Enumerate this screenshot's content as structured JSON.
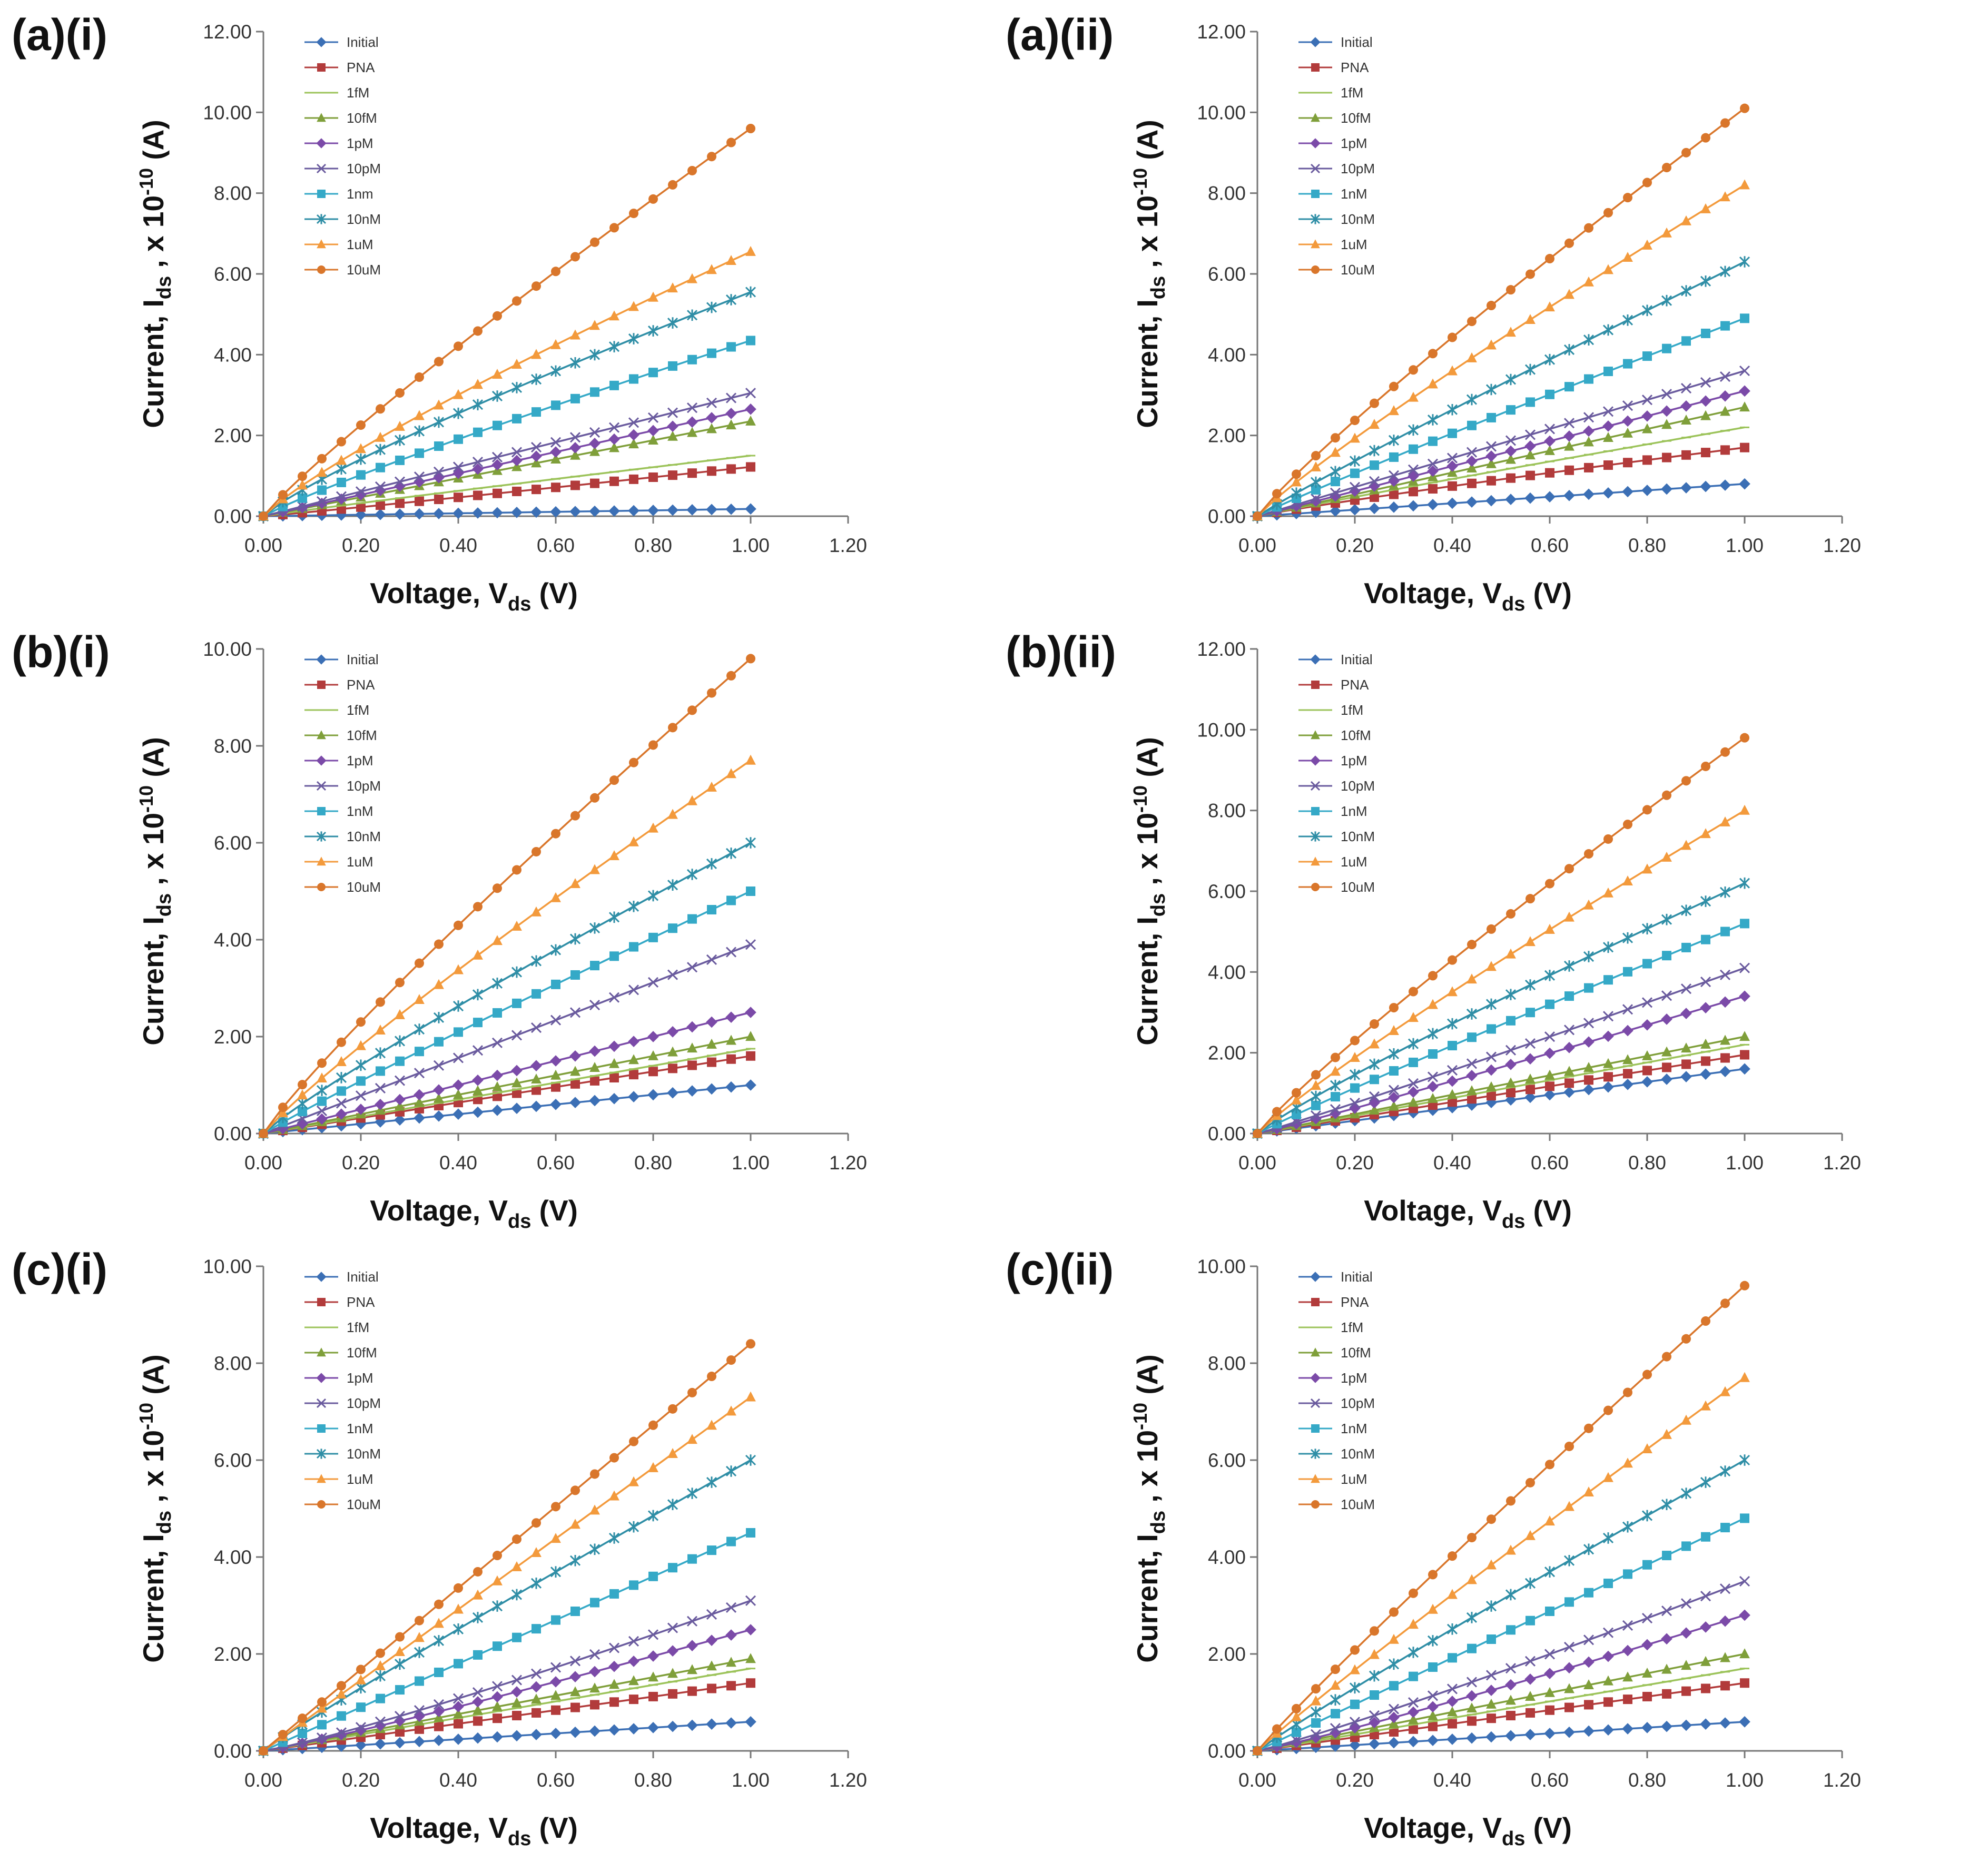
{
  "figure": {
    "series_order": [
      "Initial",
      "PNA",
      "1fM",
      "10fM",
      "1pM",
      "10pM",
      "1nM",
      "10nM",
      "1uM",
      "10uM"
    ],
    "series_colors": {
      "Initial": "#3b6fb5",
      "PNA": "#b23b3b",
      "1fM": "#9cc35a",
      "10fM": "#7f9f3a",
      "1pM": "#7b4aa8",
      "10pM": "#6a5b9e",
      "1nM": "#35a9c7",
      "10nM": "#2f8ea6",
      "1uM": "#f39a3c",
      "10uM": "#d9762b"
    },
    "series_markers": {
      "Initial": "diamond-icon",
      "PNA": "square-icon",
      "1fM": "dash-icon",
      "10fM": "triangle-icon",
      "1pM": "diamond-icon",
      "10pM": "x-icon",
      "1nM": "square-icon",
      "10nM": "star-icon",
      "1uM": "triangle-icon",
      "10uM": "circle-icon"
    }
  },
  "chart_data": [
    {
      "type": "line",
      "panel": "(a)(i)",
      "xlabel": "Voltage, Vds (V)",
      "xlabel_main": "Voltage, V",
      "xlabel_sub": "ds",
      "xlabel_tail": " (V)",
      "ylabel": "Current, Ids , x 10-10 (A)",
      "ylabel_main": "Current, I",
      "ylabel_sub": "ds",
      "ylabel_mid": " , x 10",
      "ylabel_sup": "-10",
      "ylabel_tail": " (A)",
      "xlim": [
        0,
        1.2
      ],
      "ylim": [
        0,
        12
      ],
      "xticks": [
        "0.00",
        "0.20",
        "0.40",
        "0.60",
        "0.80",
        "1.00",
        "1.20"
      ],
      "yticks": [
        "0.00",
        "2.00",
        "4.00",
        "6.00",
        "8.00",
        "10.00",
        "12.00"
      ],
      "legend": [
        "Initial",
        "PNA",
        "1fM",
        "10fM",
        "1pM",
        "10pM",
        "1nm",
        "10nM",
        "1uM",
        "10uM"
      ],
      "x_start": 0,
      "x_end": 1.0,
      "points": 26,
      "series": [
        {
          "name": "Initial",
          "end": 0.18,
          "curve": 1.0
        },
        {
          "name": "PNA",
          "end": 1.22,
          "curve": 1.05
        },
        {
          "name": "1fM",
          "end": 1.5,
          "curve": 0.95
        },
        {
          "name": "10fM",
          "end": 2.35,
          "curve": 1.0
        },
        {
          "name": "1pM",
          "end": 2.65,
          "curve": 1.0
        },
        {
          "name": "10pM",
          "end": 3.05,
          "curve": 1.0
        },
        {
          "name": "1nM",
          "end": 4.35,
          "curve": 0.9
        },
        {
          "name": "10nM",
          "end": 5.55,
          "curve": 0.85
        },
        {
          "name": "1uM",
          "end": 6.55,
          "curve": 0.85
        },
        {
          "name": "10uM",
          "end": 9.6,
          "curve": 0.9
        }
      ]
    },
    {
      "type": "line",
      "panel": "(a)(ii)",
      "xlabel": "Voltage, Vds (V)",
      "xlabel_main": "Voltage, V",
      "xlabel_sub": "ds",
      "xlabel_tail": " (V)",
      "ylabel": "Current, Ids , x 10-10 (A)",
      "ylabel_main": "Current, I",
      "ylabel_sub": "ds",
      "ylabel_mid": " , x 10",
      "ylabel_sup": "-10",
      "ylabel_tail": " (A)",
      "xlim": [
        0,
        1.2
      ],
      "ylim": [
        0,
        12
      ],
      "xticks": [
        "0.00",
        "0.20",
        "0.40",
        "0.60",
        "0.80",
        "1.00",
        "1.20"
      ],
      "yticks": [
        "0.00",
        "2.00",
        "4.00",
        "6.00",
        "8.00",
        "10.00",
        "12.00"
      ],
      "legend": [
        "Initial",
        "PNA",
        "1fM",
        "10fM",
        "1pM",
        "10pM",
        "1nM",
        "10nM",
        "1uM",
        "10uM"
      ],
      "x_start": 0,
      "x_end": 1.0,
      "points": 26,
      "series": [
        {
          "name": "Initial",
          "end": 0.8,
          "curve": 1.0
        },
        {
          "name": "PNA",
          "end": 1.7,
          "curve": 0.9
        },
        {
          "name": "1fM",
          "end": 2.2,
          "curve": 0.95
        },
        {
          "name": "10fM",
          "end": 2.7,
          "curve": 1.0
        },
        {
          "name": "1pM",
          "end": 3.1,
          "curve": 1.0
        },
        {
          "name": "10pM",
          "end": 3.6,
          "curve": 1.0
        },
        {
          "name": "1nM",
          "end": 4.9,
          "curve": 0.95
        },
        {
          "name": "10nM",
          "end": 6.3,
          "curve": 0.95
        },
        {
          "name": "1uM",
          "end": 8.2,
          "curve": 0.9
        },
        {
          "name": "10uM",
          "end": 10.1,
          "curve": 0.9
        }
      ]
    },
    {
      "type": "line",
      "panel": "(b)(i)",
      "xlabel": "Voltage, Vds (V)",
      "xlabel_main": "Voltage, V",
      "xlabel_sub": "ds",
      "xlabel_tail": " (V)",
      "ylabel": "Current, Ids , x 10-10 (A)",
      "ylabel_main": "Current, I",
      "ylabel_sub": "ds",
      "ylabel_mid": " , x 10",
      "ylabel_sup": "-10",
      "ylabel_tail": " (A)",
      "xlim": [
        0,
        1.2
      ],
      "ylim": [
        0,
        10
      ],
      "xticks": [
        "0.00",
        "0.20",
        "0.40",
        "0.60",
        "0.80",
        "1.00",
        "1.20"
      ],
      "yticks": [
        "0.00",
        "2.00",
        "4.00",
        "6.00",
        "8.00",
        "10.00"
      ],
      "legend": [
        "Initial",
        "PNA",
        "1fM",
        "10fM",
        "1pM",
        "10pM",
        "1nM",
        "10nM",
        "1uM",
        "10uM"
      ],
      "x_start": 0,
      "x_end": 1.0,
      "points": 26,
      "series": [
        {
          "name": "Initial",
          "end": 1.0,
          "curve": 1.0
        },
        {
          "name": "PNA",
          "end": 1.6,
          "curve": 1.0
        },
        {
          "name": "1fM",
          "end": 1.75,
          "curve": 1.0
        },
        {
          "name": "10fM",
          "end": 2.0,
          "curve": 1.0
        },
        {
          "name": "1pM",
          "end": 2.5,
          "curve": 1.0
        },
        {
          "name": "10pM",
          "end": 3.9,
          "curve": 1.0
        },
        {
          "name": "1nM",
          "end": 5.0,
          "curve": 0.95
        },
        {
          "name": "10nM",
          "end": 6.0,
          "curve": 0.9
        },
        {
          "name": "1uM",
          "end": 7.7,
          "curve": 0.9
        },
        {
          "name": "10uM",
          "end": 9.8,
          "curve": 0.9
        }
      ]
    },
    {
      "type": "line",
      "panel": "(b)(ii)",
      "xlabel": "Voltage, Vds (V)",
      "xlabel_main": "Voltage, V",
      "xlabel_sub": "ds",
      "xlabel_tail": " (V)",
      "ylabel": "Current, Ids , x 10-10 (A)",
      "ylabel_main": "Current, I",
      "ylabel_sub": "ds",
      "ylabel_mid": " , x 10",
      "ylabel_sup": "-10",
      "ylabel_tail": " (A)",
      "xlim": [
        0,
        1.2
      ],
      "ylim": [
        0,
        12
      ],
      "xticks": [
        "0.00",
        "0.20",
        "0.40",
        "0.60",
        "0.80",
        "1.00",
        "1.20"
      ],
      "yticks": [
        "0.00",
        "2.00",
        "4.00",
        "6.00",
        "8.00",
        "10.00",
        "12.00"
      ],
      "legend": [
        "Initial",
        "PNA",
        "1fM",
        "10fM",
        "1pM",
        "10pM",
        "1nM",
        "10nM",
        "1uM",
        "10uM"
      ],
      "x_start": 0,
      "x_end": 1.0,
      "points": 26,
      "series": [
        {
          "name": "Initial",
          "end": 1.6,
          "curve": 1.0
        },
        {
          "name": "PNA",
          "end": 1.95,
          "curve": 1.0
        },
        {
          "name": "1fM",
          "end": 2.2,
          "curve": 1.0
        },
        {
          "name": "10fM",
          "end": 2.4,
          "curve": 1.0
        },
        {
          "name": "1pM",
          "end": 3.4,
          "curve": 1.05
        },
        {
          "name": "10pM",
          "end": 4.1,
          "curve": 1.05
        },
        {
          "name": "1nM",
          "end": 5.2,
          "curve": 0.95
        },
        {
          "name": "10nM",
          "end": 6.2,
          "curve": 0.9
        },
        {
          "name": "1uM",
          "end": 8.0,
          "curve": 0.9
        },
        {
          "name": "10uM",
          "end": 9.8,
          "curve": 0.9
        }
      ]
    },
    {
      "type": "line",
      "panel": "(c)(i)",
      "xlabel": "Voltage, Vds (V)",
      "xlabel_main": "Voltage, V",
      "xlabel_sub": "ds",
      "xlabel_tail": " (V)",
      "ylabel": "Current, Ids , x 10-10 (A)",
      "ylabel_main": "Current, I",
      "ylabel_sub": "ds",
      "ylabel_mid": " , x 10",
      "ylabel_sup": "-10",
      "ylabel_tail": " (A)",
      "xlim": [
        0,
        1.2
      ],
      "ylim": [
        0,
        10
      ],
      "xticks": [
        "0.00",
        "0.20",
        "0.40",
        "0.60",
        "0.80",
        "1.00",
        "1.20"
      ],
      "yticks": [
        "0.00",
        "2.00",
        "4.00",
        "6.00",
        "8.00",
        "10.00"
      ],
      "legend": [
        "Initial",
        "PNA",
        "1fM",
        "10fM",
        "1pM",
        "10pM",
        "1nM",
        "10nM",
        "1uM",
        "10uM"
      ],
      "x_start": 0,
      "x_end": 1.0,
      "points": 26,
      "series": [
        {
          "name": "Initial",
          "end": 0.6,
          "curve": 1.0
        },
        {
          "name": "PNA",
          "end": 1.4,
          "curve": 1.0
        },
        {
          "name": "1fM",
          "end": 1.7,
          "curve": 1.0
        },
        {
          "name": "10fM",
          "end": 1.9,
          "curve": 1.0
        },
        {
          "name": "1pM",
          "end": 2.5,
          "curve": 1.1
        },
        {
          "name": "10pM",
          "end": 3.1,
          "curve": 1.15
        },
        {
          "name": "1nM",
          "end": 4.5,
          "curve": 1.0
        },
        {
          "name": "10nM",
          "end": 6.0,
          "curve": 0.95
        },
        {
          "name": "1uM",
          "end": 7.3,
          "curve": 1.0
        },
        {
          "name": "10uM",
          "end": 8.4,
          "curve": 1.0
        }
      ]
    },
    {
      "type": "line",
      "panel": "(c)(ii)",
      "xlabel": "Voltage, Vds (V)",
      "xlabel_main": "Voltage, V",
      "xlabel_sub": "ds",
      "xlabel_tail": " (V)",
      "ylabel": "Current, Ids , x 10-10 (A)",
      "ylabel_main": "Current, I",
      "ylabel_sub": "ds",
      "ylabel_mid": " , x 10",
      "ylabel_sup": "-10",
      "ylabel_tail": " (A)",
      "xlim": [
        0,
        1.2
      ],
      "ylim": [
        0,
        10
      ],
      "xticks": [
        "0.00",
        "0.20",
        "0.40",
        "0.60",
        "0.80",
        "1.00",
        "1.20"
      ],
      "yticks": [
        "0.00",
        "2.00",
        "4.00",
        "6.00",
        "8.00",
        "10.00"
      ],
      "legend": [
        "Initial",
        "PNA",
        "1fM",
        "10fM",
        "1pM",
        "10pM",
        "1nM",
        "10nM",
        "1uM",
        "10uM"
      ],
      "x_start": 0,
      "x_end": 1.0,
      "points": 26,
      "series": [
        {
          "name": "Initial",
          "end": 0.6,
          "curve": 1.0
        },
        {
          "name": "PNA",
          "end": 1.4,
          "curve": 1.0
        },
        {
          "name": "1fM",
          "end": 1.7,
          "curve": 1.0
        },
        {
          "name": "10fM",
          "end": 2.0,
          "curve": 1.0
        },
        {
          "name": "1pM",
          "end": 2.8,
          "curve": 1.1
        },
        {
          "name": "10pM",
          "end": 3.5,
          "curve": 1.1
        },
        {
          "name": "1nM",
          "end": 4.8,
          "curve": 1.0
        },
        {
          "name": "10nM",
          "end": 6.0,
          "curve": 0.95
        },
        {
          "name": "1uM",
          "end": 7.7,
          "curve": 0.95
        },
        {
          "name": "10uM",
          "end": 9.6,
          "curve": 0.95
        }
      ]
    }
  ]
}
